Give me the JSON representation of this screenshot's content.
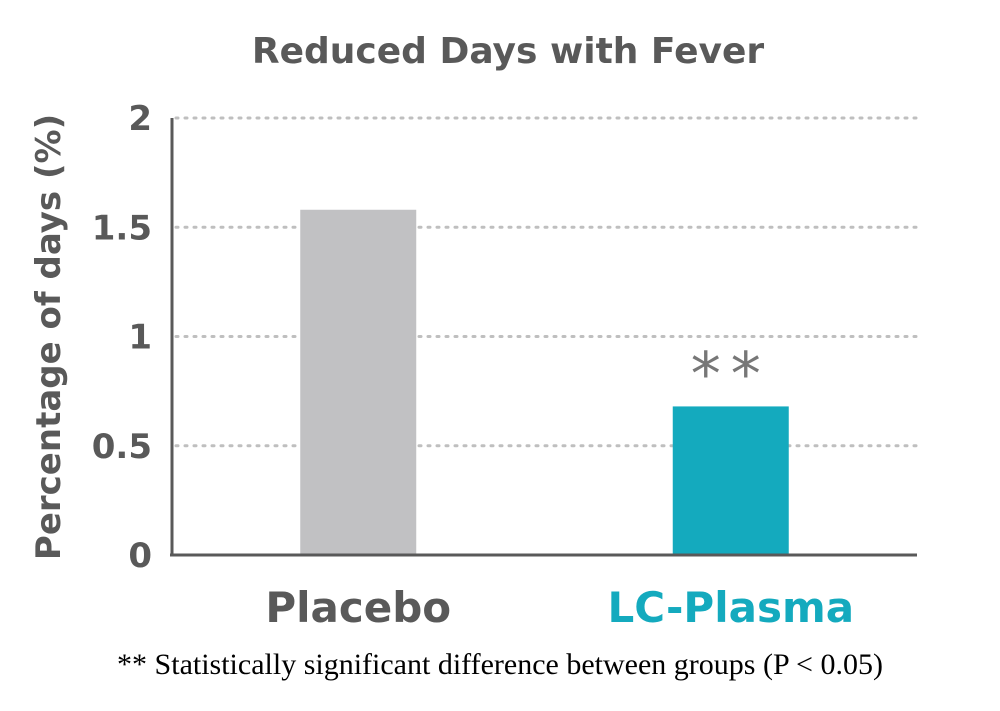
{
  "chart_data": {
    "type": "bar",
    "title": "Reduced Days with Fever",
    "ylabel": "Percentage of days (%)",
    "xlabel": "",
    "categories": [
      "Placebo",
      "LC-Plasma"
    ],
    "values": [
      1.58,
      0.68
    ],
    "colors": [
      "#c1c1c3",
      "#14aabe"
    ],
    "label_colors": [
      "#595959",
      "#14aabe"
    ],
    "ylim": [
      0,
      2
    ],
    "yticks": [
      0,
      0.5,
      1,
      1.5,
      2
    ],
    "ytick_labels": [
      "0",
      "0.5",
      "1",
      "1.5",
      "2"
    ],
    "grid": true,
    "annotations": [
      {
        "category": "LC-Plasma",
        "text": "**",
        "color": "#777777"
      }
    ]
  },
  "footnote": "** Statistically significant difference between groups (P < 0.05)"
}
